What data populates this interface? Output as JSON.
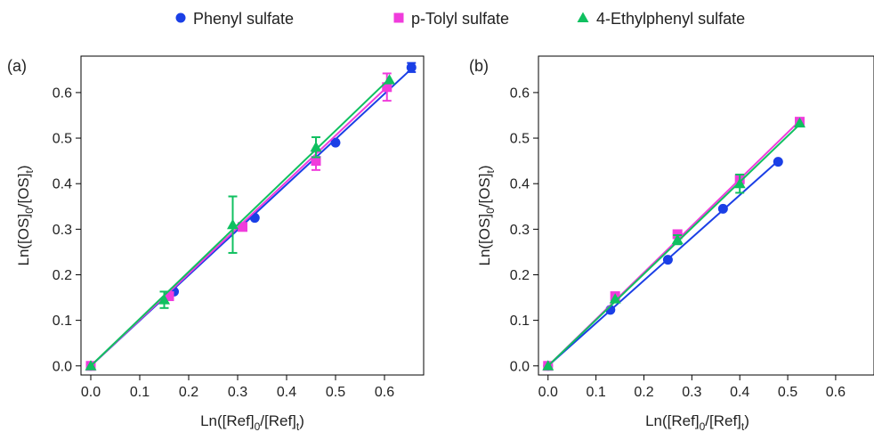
{
  "legend": [
    {
      "name": "Phenyl sulfate",
      "color": "#1a3fe6",
      "marker": "circle"
    },
    {
      "name": "p-Tolyl sulfate",
      "color": "#f03cdc",
      "marker": "square"
    },
    {
      "name": "4-Ethylphenyl sulfate",
      "color": "#10c060",
      "marker": "triangle"
    }
  ],
  "chart_data": [
    {
      "panel": "(a)",
      "type": "scatter",
      "xlabel": "Ln([Ref]0/[Ref]t)",
      "ylabel": "Ln([OS]0/[OS]t)",
      "xlim": [
        -0.02,
        0.68
      ],
      "ylim": [
        -0.02,
        0.68
      ],
      "xticks": [
        "0.0",
        "0.1",
        "0.2",
        "0.3",
        "0.4",
        "0.5",
        "0.6"
      ],
      "yticks": [
        "0.0",
        "0.1",
        "0.2",
        "0.3",
        "0.4",
        "0.5",
        "0.6"
      ],
      "series": [
        {
          "name": "Phenyl sulfate",
          "color": "#1a3fe6",
          "marker": "circle",
          "x": [
            0.0,
            0.17,
            0.335,
            0.5,
            0.655
          ],
          "y": [
            0.0,
            0.163,
            0.325,
            0.49,
            0.655
          ],
          "err": [
            0,
            0,
            0,
            0,
            0.01
          ],
          "fit": [
            [
              0.0,
              0.0
            ],
            [
              0.655,
              0.652
            ]
          ]
        },
        {
          "name": "p-Tolyl sulfate",
          "color": "#f03cdc",
          "marker": "square",
          "x": [
            0.0,
            0.16,
            0.31,
            0.46,
            0.605
          ],
          "y": [
            0.0,
            0.153,
            0.305,
            0.45,
            0.612
          ],
          "err": [
            0,
            0,
            0,
            0.02,
            0.03
          ],
          "fit": [
            [
              0.0,
              0.0
            ],
            [
              0.615,
              0.622
            ]
          ]
        },
        {
          "name": "4-Ethylphenyl sulfate",
          "color": "#10c060",
          "marker": "triangle",
          "x": [
            0.0,
            0.15,
            0.29,
            0.46,
            0.61
          ],
          "y": [
            0.0,
            0.145,
            0.31,
            0.48,
            0.628
          ],
          "err": [
            0,
            0.018,
            0.062,
            0.022,
            0
          ],
          "fit": [
            [
              0.0,
              0.0
            ],
            [
              0.61,
              0.63
            ]
          ]
        }
      ]
    },
    {
      "panel": "(b)",
      "type": "scatter",
      "xlabel": "Ln([Ref]0/[Ref]t)",
      "ylabel": "Ln([OS]0/[OS]t)",
      "xlim": [
        -0.02,
        0.68
      ],
      "ylim": [
        -0.02,
        0.68
      ],
      "xticks": [
        "0.0",
        "0.1",
        "0.2",
        "0.3",
        "0.4",
        "0.5",
        "0.6"
      ],
      "yticks": [
        "0.0",
        "0.1",
        "0.2",
        "0.3",
        "0.4",
        "0.5",
        "0.6"
      ],
      "series": [
        {
          "name": "Phenyl sulfate",
          "color": "#1a3fe6",
          "marker": "circle",
          "x": [
            0.0,
            0.13,
            0.25,
            0.365,
            0.48
          ],
          "y": [
            0.0,
            0.123,
            0.233,
            0.345,
            0.448
          ],
          "err": [
            0,
            0,
            0,
            0,
            0
          ],
          "fit": [
            [
              0.0,
              0.0
            ],
            [
              0.48,
              0.45
            ]
          ]
        },
        {
          "name": "p-Tolyl sulfate",
          "color": "#f03cdc",
          "marker": "square",
          "x": [
            0.0,
            0.14,
            0.27,
            0.4,
            0.525
          ],
          "y": [
            0.0,
            0.153,
            0.289,
            0.41,
            0.536
          ],
          "err": [
            0,
            0,
            0,
            0.01,
            0
          ],
          "fit": [
            [
              0.0,
              0.0
            ],
            [
              0.525,
              0.538
            ]
          ]
        },
        {
          "name": "4-Ethylphenyl sulfate",
          "color": "#10c060",
          "marker": "triangle",
          "x": [
            0.0,
            0.14,
            0.27,
            0.4,
            0.525
          ],
          "y": [
            0.0,
            0.147,
            0.277,
            0.4,
            0.533
          ],
          "err": [
            0,
            0,
            0.01,
            0.02,
            0
          ],
          "fit": [
            [
              0.0,
              0.0
            ],
            [
              0.525,
              0.53
            ]
          ]
        }
      ]
    }
  ]
}
